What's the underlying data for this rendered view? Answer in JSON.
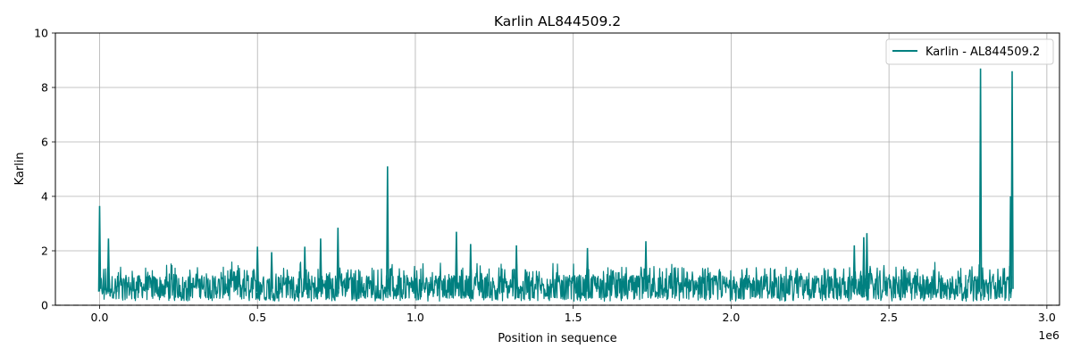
{
  "chart_data": {
    "type": "line",
    "title": "Karlin AL844509.2",
    "xlabel": "Position in sequence",
    "ylabel": "Karlin",
    "x_offset_label": "1e6",
    "xlim": [
      -140000,
      3040000
    ],
    "ylim": [
      0,
      10
    ],
    "x_ticks": [
      0,
      500000,
      1000000,
      1500000,
      2000000,
      2500000,
      3000000
    ],
    "x_tick_labels": [
      "0.0",
      "0.5",
      "1.0",
      "1.5",
      "2.0",
      "2.5",
      "3.0"
    ],
    "y_ticks": [
      0,
      2,
      4,
      6,
      8,
      10
    ],
    "y_tick_labels": [
      "0",
      "2",
      "4",
      "6",
      "8",
      "10"
    ],
    "grid": true,
    "legend": "top-right",
    "baseline": {
      "y": 0,
      "style": "dashed",
      "color": "#888888"
    },
    "series": [
      {
        "name": "Karlin - AL844509.2",
        "color": "#008080",
        "x_range": [
          0,
          2890000
        ],
        "typical_low": 0.15,
        "typical_high": 1.1,
        "peaks": [
          {
            "x": 0,
            "y": 3.65
          },
          {
            "x": 28000,
            "y": 2.45
          },
          {
            "x": 500000,
            "y": 2.15
          },
          {
            "x": 545000,
            "y": 1.95
          },
          {
            "x": 650000,
            "y": 2.15
          },
          {
            "x": 700000,
            "y": 2.45
          },
          {
            "x": 755000,
            "y": 2.85
          },
          {
            "x": 912000,
            "y": 5.1
          },
          {
            "x": 1130000,
            "y": 2.7
          },
          {
            "x": 1175000,
            "y": 2.25
          },
          {
            "x": 1320000,
            "y": 2.2
          },
          {
            "x": 1545000,
            "y": 2.1
          },
          {
            "x": 1730000,
            "y": 2.35
          },
          {
            "x": 2390000,
            "y": 2.2
          },
          {
            "x": 2420000,
            "y": 2.5
          },
          {
            "x": 2430000,
            "y": 2.65
          },
          {
            "x": 2790000,
            "y": 8.7
          },
          {
            "x": 2885000,
            "y": 4.0
          },
          {
            "x": 2890000,
            "y": 8.6
          }
        ]
      }
    ]
  }
}
